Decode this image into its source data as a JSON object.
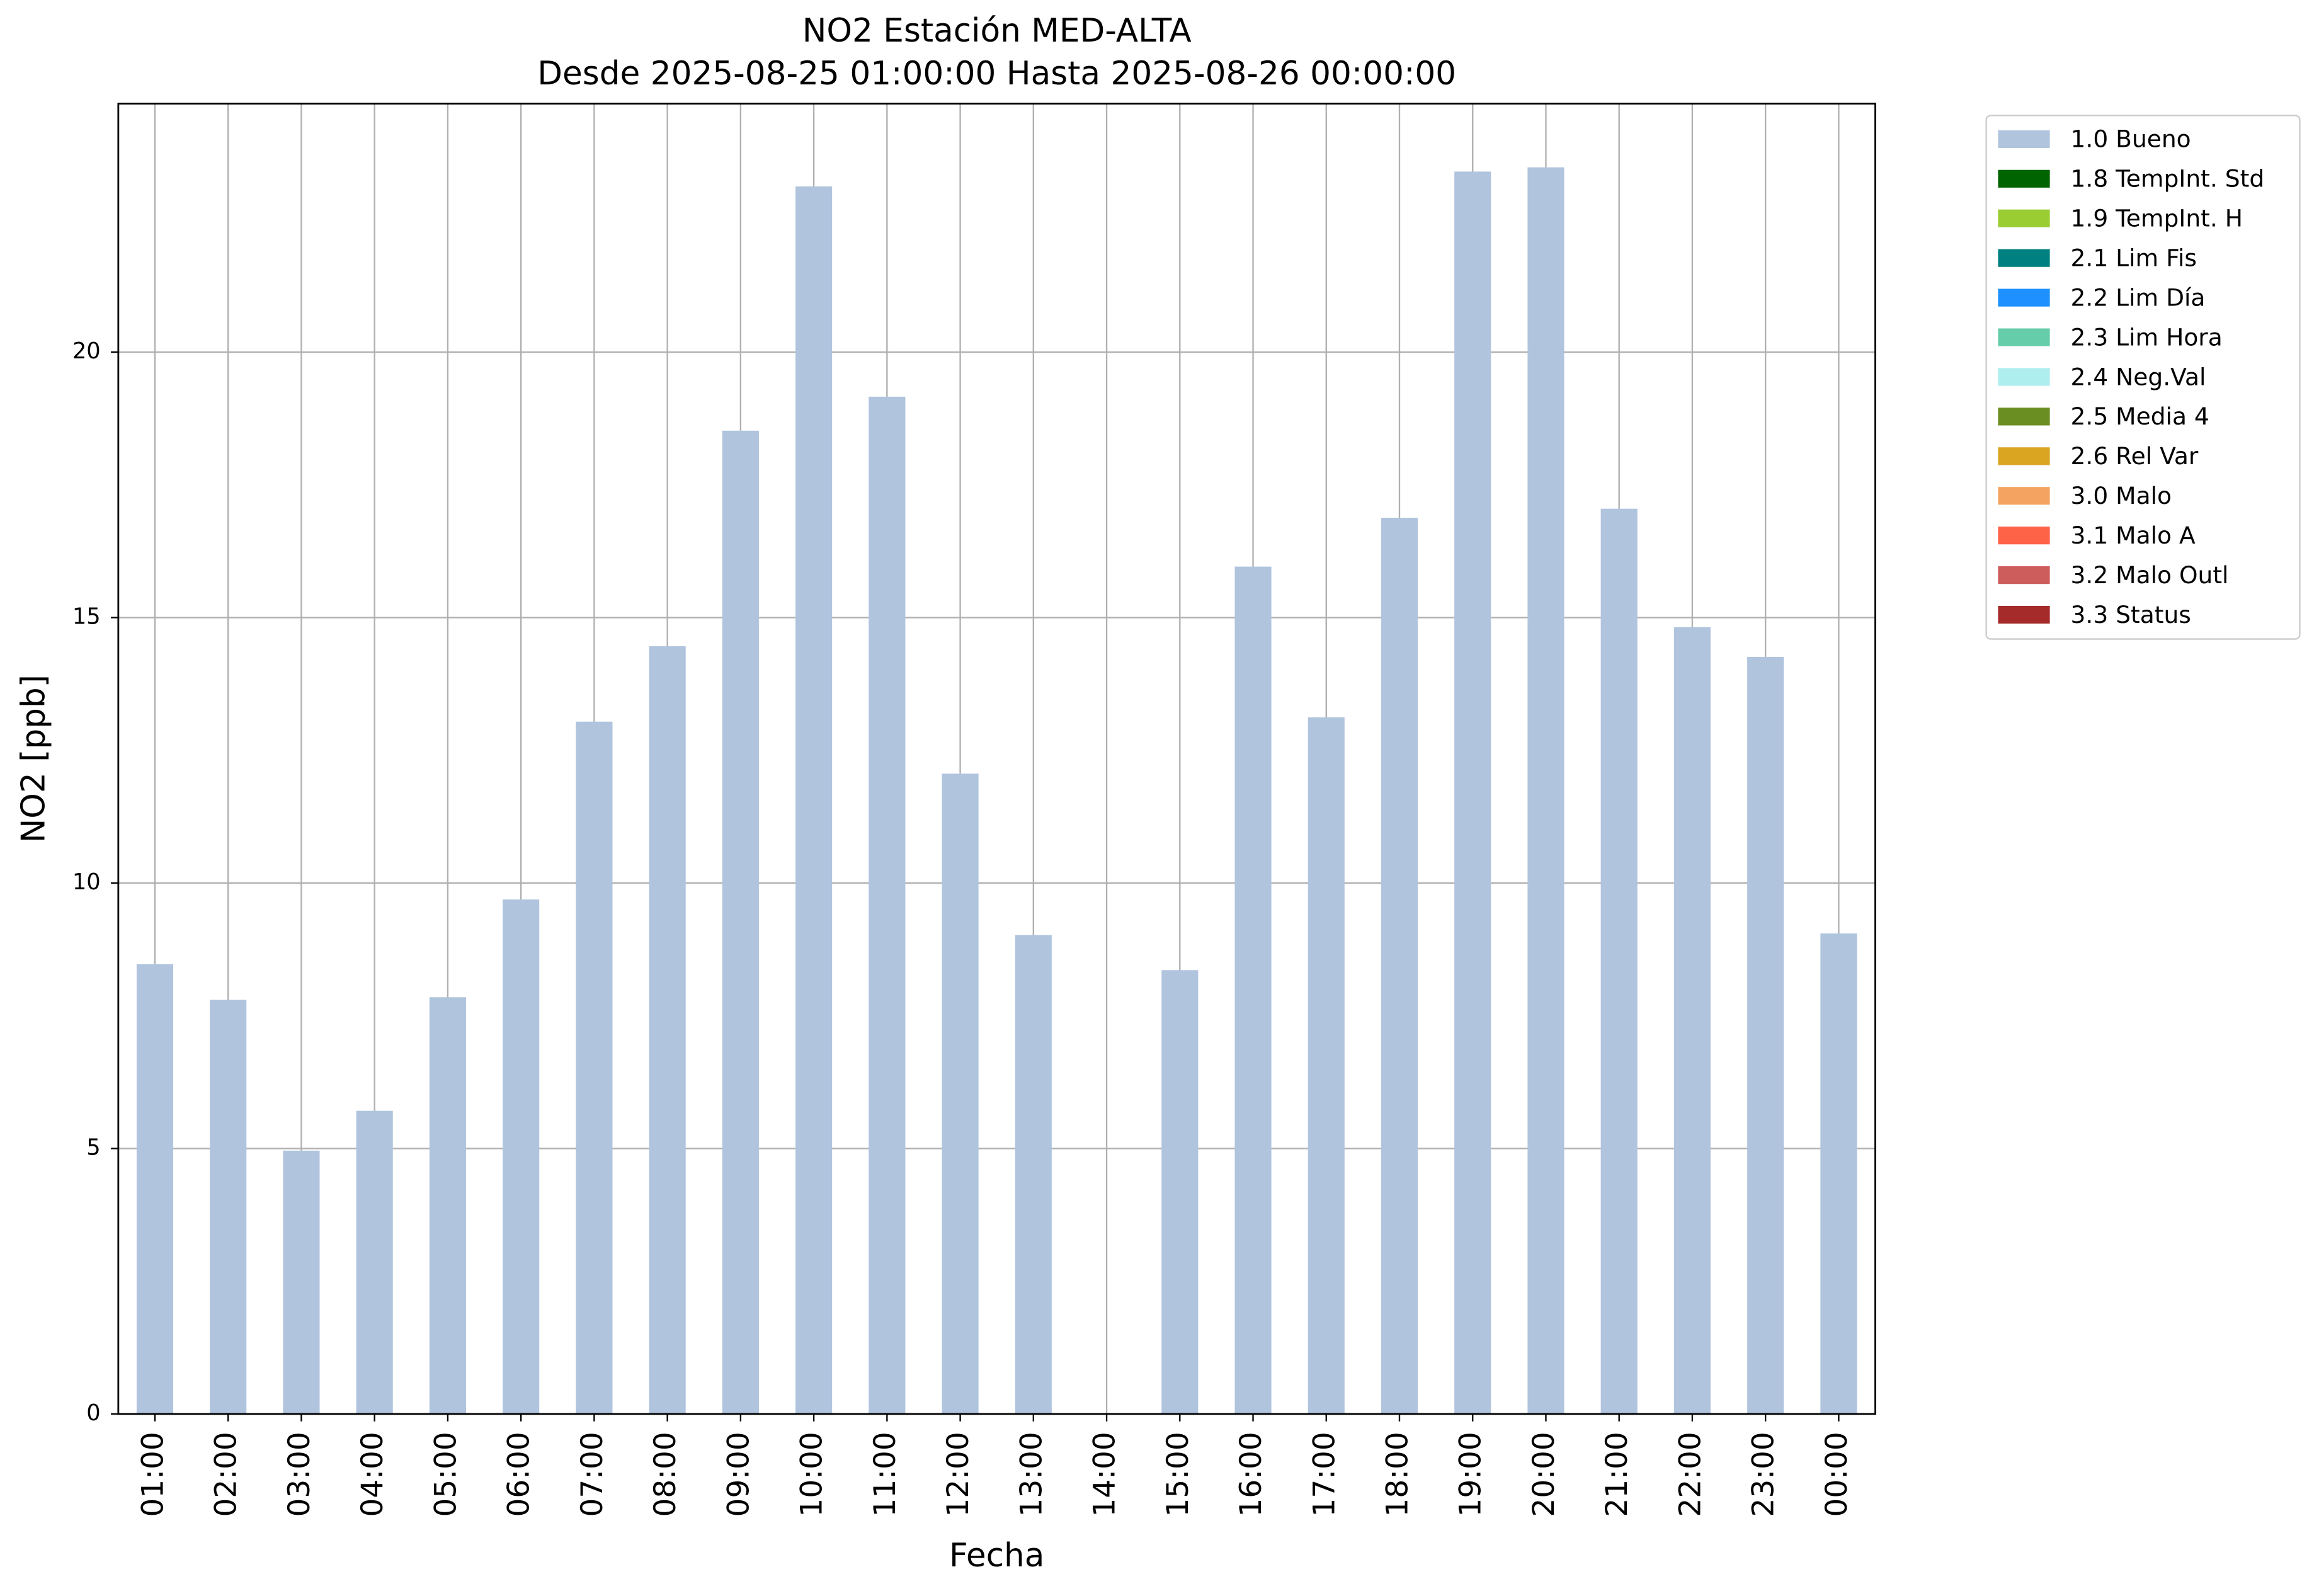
{
  "chart_data": {
    "type": "bar",
    "stacked": true,
    "title": "NO2 Estación MED-ALTA",
    "subtitle": "Desde 2025-08-25 01:00:00 Hasta 2025-08-26 00:00:00",
    "x_label": "Fecha",
    "y_label": "NO2 [ppb]",
    "categories": [
      "01:00",
      "02:00",
      "03:00",
      "04:00",
      "05:00",
      "06:00",
      "07:00",
      "08:00",
      "09:00",
      "10:00",
      "11:00",
      "12:00",
      "13:00",
      "14:00",
      "15:00",
      "16:00",
      "17:00",
      "18:00",
      "19:00",
      "20:00",
      "21:00",
      "22:00",
      "23:00",
      "00:00"
    ],
    "series": [
      {
        "name": "1.0 Bueno",
        "color": "#b0c4de",
        "values": [
          8.47,
          7.8,
          4.96,
          5.71,
          7.85,
          9.69,
          13.04,
          14.46,
          18.52,
          23.12,
          19.16,
          12.06,
          9.02,
          null,
          8.36,
          15.96,
          13.12,
          16.88,
          23.4,
          23.48,
          17.05,
          14.82,
          14.26,
          9.05
        ]
      },
      {
        "name": "1.8 TempInt. Std",
        "color": "#006400",
        "values": [
          null,
          null,
          null,
          null,
          null,
          null,
          null,
          null,
          null,
          null,
          null,
          null,
          null,
          null,
          null,
          null,
          null,
          null,
          null,
          null,
          null,
          null,
          null,
          null
        ]
      },
      {
        "name": "1.9 TempInt. H",
        "color": "#9acd32",
        "values": [
          null,
          null,
          null,
          null,
          null,
          null,
          null,
          null,
          null,
          null,
          null,
          null,
          null,
          null,
          null,
          null,
          null,
          null,
          null,
          null,
          null,
          null,
          null,
          null
        ]
      },
      {
        "name": "2.1 Lim Fis",
        "color": "#008080",
        "values": [
          null,
          null,
          null,
          null,
          null,
          null,
          null,
          null,
          null,
          null,
          null,
          null,
          null,
          null,
          null,
          null,
          null,
          null,
          null,
          null,
          null,
          null,
          null,
          null
        ]
      },
      {
        "name": "2.2 Lim Día",
        "color": "#1e90ff",
        "values": [
          null,
          null,
          null,
          null,
          null,
          null,
          null,
          null,
          null,
          null,
          null,
          null,
          null,
          null,
          null,
          null,
          null,
          null,
          null,
          null,
          null,
          null,
          null,
          null
        ]
      },
      {
        "name": "2.3 Lim Hora",
        "color": "#66cdaa",
        "values": [
          null,
          null,
          null,
          null,
          null,
          null,
          null,
          null,
          null,
          null,
          null,
          null,
          null,
          null,
          null,
          null,
          null,
          null,
          null,
          null,
          null,
          null,
          null,
          null
        ]
      },
      {
        "name": "2.4 Neg.Val",
        "color": "#afeeee",
        "values": [
          null,
          null,
          null,
          null,
          null,
          null,
          null,
          null,
          null,
          null,
          null,
          null,
          null,
          null,
          null,
          null,
          null,
          null,
          null,
          null,
          null,
          null,
          null,
          null
        ]
      },
      {
        "name": "2.5 Media 4",
        "color": "#6b8e23",
        "values": [
          null,
          null,
          null,
          null,
          null,
          null,
          null,
          null,
          null,
          null,
          null,
          null,
          null,
          null,
          null,
          null,
          null,
          null,
          null,
          null,
          null,
          null,
          null,
          null
        ]
      },
      {
        "name": "2.6 Rel Var",
        "color": "#daa520",
        "values": [
          null,
          null,
          null,
          null,
          null,
          null,
          null,
          null,
          null,
          null,
          null,
          null,
          null,
          null,
          null,
          null,
          null,
          null,
          null,
          null,
          null,
          null,
          null,
          null
        ]
      },
      {
        "name": "3.0 Malo",
        "color": "#f4a460",
        "values": [
          null,
          null,
          null,
          null,
          null,
          null,
          null,
          null,
          null,
          null,
          null,
          null,
          null,
          null,
          null,
          null,
          null,
          null,
          null,
          null,
          null,
          null,
          null,
          null
        ]
      },
      {
        "name": "3.1 Malo A",
        "color": "#ff6347",
        "values": [
          null,
          null,
          null,
          null,
          null,
          null,
          null,
          null,
          null,
          null,
          null,
          null,
          null,
          null,
          null,
          null,
          null,
          null,
          null,
          null,
          null,
          null,
          null,
          null
        ]
      },
      {
        "name": "3.2 Malo Outl",
        "color": "#cd5c5c",
        "values": [
          null,
          null,
          null,
          null,
          null,
          null,
          null,
          null,
          null,
          null,
          null,
          null,
          null,
          null,
          null,
          null,
          null,
          null,
          null,
          null,
          null,
          null,
          null,
          null
        ]
      },
      {
        "name": "3.3 Status",
        "color": "#a52a2a",
        "values": [
          null,
          null,
          null,
          null,
          null,
          null,
          null,
          null,
          null,
          null,
          null,
          null,
          null,
          null,
          null,
          null,
          null,
          null,
          null,
          null,
          null,
          null,
          null,
          null
        ]
      }
    ],
    "ylim": [
      0,
      24.68
    ],
    "yticks": [
      0,
      5,
      10,
      15,
      20
    ],
    "grid": true,
    "legend": "outside-right"
  }
}
